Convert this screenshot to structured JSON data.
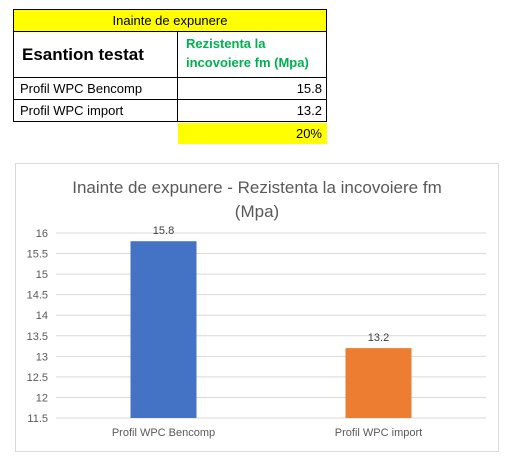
{
  "table": {
    "header": "Inainte de expunere",
    "col1": "Esantion testat",
    "col2_line1": "Rezistenta la",
    "col2_line2": "incovoiere fm (Mpa)",
    "rows": [
      {
        "name": "Profil WPC Bencomp",
        "value": "15.8"
      },
      {
        "name": "Profil WPC import",
        "value": "13.2"
      }
    ],
    "percent": "20%",
    "accent_color": "#ffff00",
    "header2_color": "#00b050"
  },
  "chart_data": {
    "type": "bar",
    "title_line1": "Inainte de expunere - Rezistenta la incovoiere fm",
    "title_line2": "(Mpa)",
    "categories": [
      "Profil WPC Bencomp",
      "Profil WPC import"
    ],
    "values": [
      15.8,
      13.2
    ],
    "value_labels": [
      "15.8",
      "13.2"
    ],
    "colors": [
      "#4472c4",
      "#ed7d31"
    ],
    "ylim": [
      11.5,
      16
    ],
    "yticks": [
      11.5,
      12,
      12.5,
      13,
      13.5,
      14,
      14.5,
      15,
      15.5,
      16
    ],
    "grid": true,
    "xlabel": "",
    "ylabel": ""
  }
}
